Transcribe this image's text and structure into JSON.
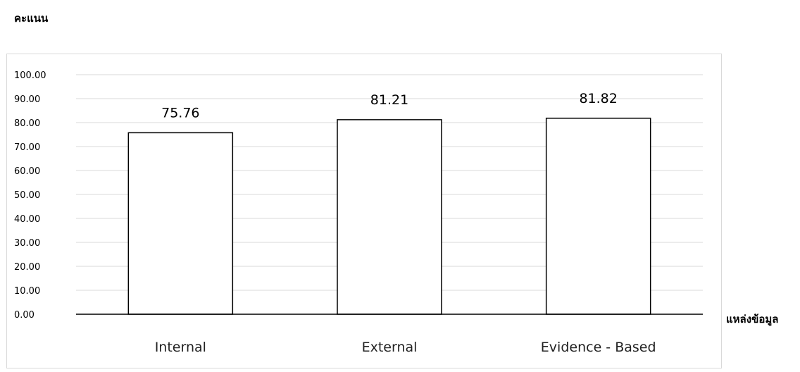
{
  "chart_data": {
    "type": "bar",
    "ylabel": "คะแนน",
    "xlabel": "แหล่งข้อมูล",
    "categories": [
      "Internal",
      "External",
      "Evidence - Based"
    ],
    "values": [
      75.76,
      81.21,
      81.82
    ],
    "data_labels": [
      "75.76",
      "81.21",
      "81.82"
    ],
    "ylim": [
      0,
      100
    ],
    "yticks": [
      "0.00",
      "10.00",
      "20.00",
      "30.00",
      "40.00",
      "50.00",
      "60.00",
      "70.00",
      "80.00",
      "90.00",
      "100.00"
    ],
    "grid": true,
    "legend": "none",
    "colors": {
      "bar_fill": "#ffffff",
      "bar_stroke": "#000000",
      "grid": "#d9d9d9",
      "axis": "#000000"
    }
  }
}
